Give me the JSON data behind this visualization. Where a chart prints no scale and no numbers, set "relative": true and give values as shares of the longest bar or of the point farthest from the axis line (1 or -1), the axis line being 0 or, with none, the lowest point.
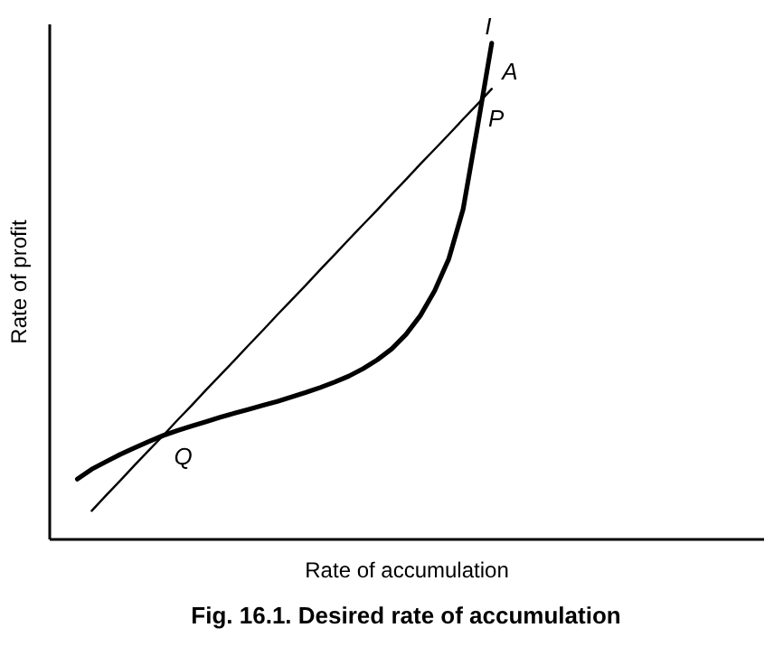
{
  "chart_data": {
    "type": "line",
    "title": "Fig. 16.1. Desired rate of accumulation",
    "xlabel": "Rate of accumulation",
    "ylabel": "Rate of profit",
    "relative": true,
    "categories": [
      null,
      null,
      null,
      null,
      null,
      null,
      null,
      null,
      null,
      null,
      null,
      null,
      null,
      null,
      null,
      null,
      null,
      null,
      null,
      null,
      null,
      null,
      null,
      null,
      null,
      null,
      null,
      null,
      null,
      null
    ],
    "series": [
      {
        "name": "I",
        "color": "#000000",
        "values": [
          0.12,
          0.14,
          0.155,
          0.17,
          0.183,
          0.196,
          0.208,
          0.218,
          0.227,
          0.236,
          0.245,
          0.253,
          0.261,
          0.269,
          0.277,
          0.286,
          0.295,
          0.305,
          0.316,
          0.328,
          0.343,
          0.361,
          0.383,
          0.412,
          0.45,
          0.5,
          0.565,
          0.665,
          0.83,
          1.0
        ]
      },
      {
        "name": "A",
        "color": "#000000",
        "values": [
          null,
          0.056,
          0.087,
          0.117,
          0.148,
          0.178,
          0.208,
          0.239,
          0.269,
          0.3,
          0.33,
          0.36,
          0.391,
          0.421,
          0.452,
          0.482,
          0.512,
          0.543,
          0.573,
          0.604,
          0.634,
          0.664,
          0.695,
          0.725,
          0.756,
          0.786,
          0.816,
          0.847,
          0.877,
          0.908
        ]
      }
    ],
    "annotations": [
      {
        "text": "P",
        "y": 0.89
      },
      {
        "text": "Q",
        "y": 0.208
      }
    ]
  }
}
